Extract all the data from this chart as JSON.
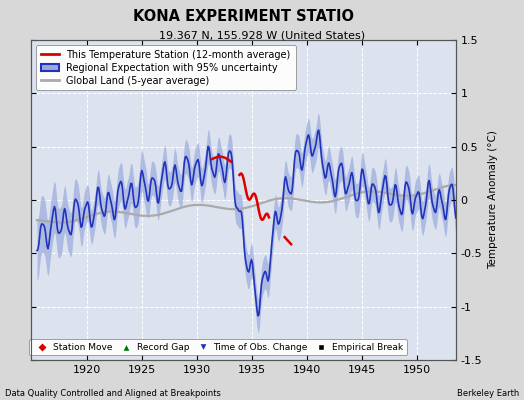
{
  "title": "KONA EXPERIMENT STATIO",
  "subtitle": "19.367 N, 155.928 W (United States)",
  "ylabel": "Temperature Anomaly (°C)",
  "xlabel_left": "Data Quality Controlled and Aligned at Breakpoints",
  "xlabel_right": "Berkeley Earth",
  "ylim": [
    -1.5,
    1.5
  ],
  "xlim": [
    1915.0,
    1953.5
  ],
  "xticks": [
    1920,
    1925,
    1930,
    1935,
    1940,
    1945,
    1950
  ],
  "yticks": [
    -1.5,
    -1.0,
    -0.5,
    0.0,
    0.5,
    1.0,
    1.5
  ],
  "ytick_labels_right": [
    "-1.5",
    "-1",
    "-0.5",
    "0",
    "0.5",
    "1",
    "1.5"
  ],
  "bg_color": "#d8d8d8",
  "plot_bg_color": "#dde3ee",
  "grid_color": "white",
  "regional_line_color": "#2233bb",
  "regional_fill_color": "#99aadd",
  "station_color": "#dd0000",
  "global_color": "#aaaaaa",
  "legend_items": [
    "This Temperature Station (12-month average)",
    "Regional Expectation with 95% uncertainty",
    "Global Land (5-year average)"
  ],
  "bottom_legend": [
    {
      "label": "Station Move",
      "color": "#dd0000",
      "marker": "D"
    },
    {
      "label": "Record Gap",
      "color": "#007700",
      "marker": "^"
    },
    {
      "label": "Time of Obs. Change",
      "color": "#2233bb",
      "marker": "v"
    },
    {
      "label": "Empirical Break",
      "color": "black",
      "marker": "s"
    }
  ]
}
